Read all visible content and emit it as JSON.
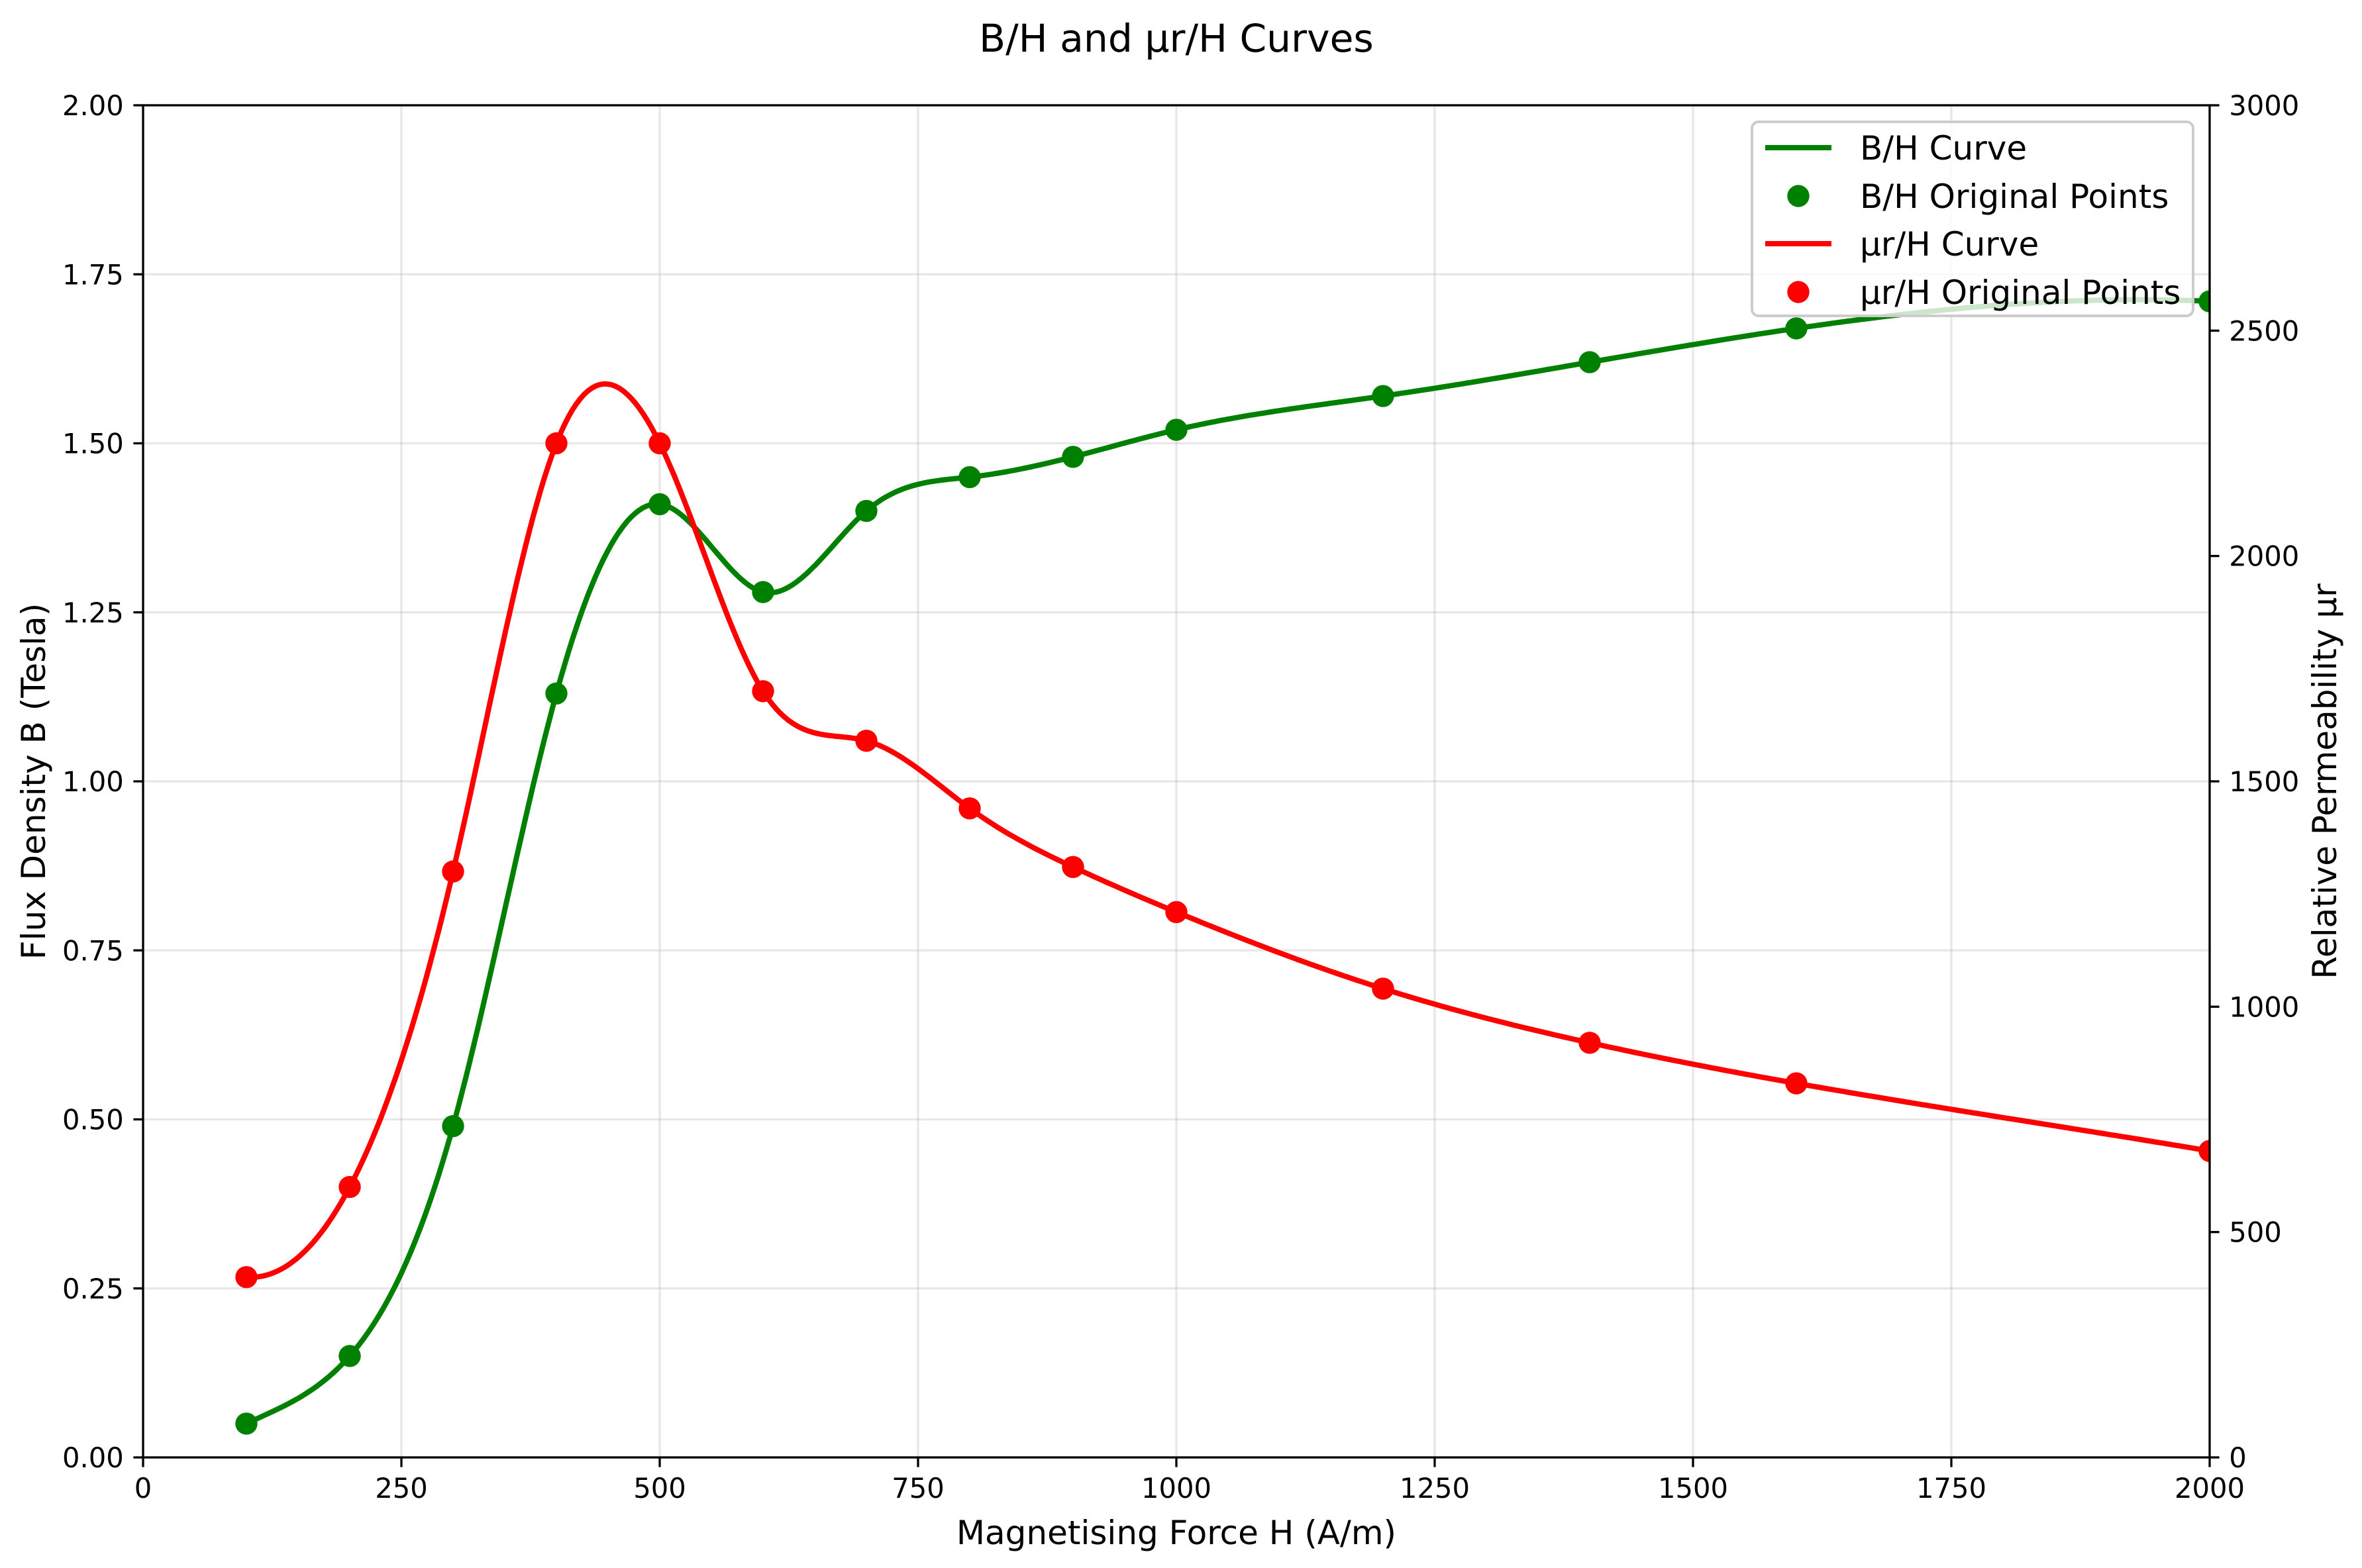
{
  "chart_data": {
    "type": "line",
    "title": "B/H and μr/H Curves",
    "xlabel": "Magnetising Force H (A/m)",
    "ylabel": "Flux Density B (Tesla)",
    "y2label": "Relative Permeability μr",
    "xlim": [
      0,
      2000
    ],
    "ylim": [
      0,
      2.0
    ],
    "y2lim": [
      0,
      3000
    ],
    "xticks": [
      "0",
      "250",
      "500",
      "750",
      "1000",
      "1250",
      "1500",
      "1750",
      "2000"
    ],
    "yticks": [
      "0.00",
      "0.25",
      "0.50",
      "0.75",
      "1.00",
      "1.25",
      "1.50",
      "1.75",
      "2.00"
    ],
    "y2ticks": [
      "0",
      "500",
      "1000",
      "1500",
      "2000",
      "2500",
      "3000"
    ],
    "grid": true,
    "legend_position": "top-right",
    "x": [
      100,
      200,
      300,
      400,
      500,
      600,
      700,
      800,
      900,
      1000,
      1200,
      1400,
      1600,
      2000
    ],
    "series": [
      {
        "name": "B/H Curve",
        "secondary_y": false,
        "line": true,
        "markers": false,
        "color": "#008000",
        "values": [
          0.05,
          0.15,
          0.49,
          1.13,
          1.41,
          1.28,
          1.4,
          1.45,
          1.48,
          1.52,
          1.57,
          1.62,
          1.67,
          1.71
        ]
      },
      {
        "name": "B/H Original Points",
        "secondary_y": false,
        "line": false,
        "markers": true,
        "color": "#008000",
        "values": [
          0.05,
          0.15,
          0.49,
          1.13,
          1.41,
          1.28,
          1.4,
          1.45,
          1.48,
          1.52,
          1.57,
          1.62,
          1.67,
          1.71
        ]
      },
      {
        "name": "μr/H Curve",
        "secondary_y": true,
        "line": true,
        "markers": false,
        "color": "#ff0000",
        "values": [
          400,
          600,
          1300,
          2250,
          2250,
          1700,
          1590,
          1440,
          1310,
          1210,
          1040,
          920,
          830,
          680
        ]
      },
      {
        "name": "μr/H Original Points",
        "secondary_y": true,
        "line": false,
        "markers": true,
        "color": "#ff0000",
        "values": [
          400,
          600,
          1300,
          2250,
          2250,
          1700,
          1590,
          1440,
          1310,
          1210,
          1040,
          920,
          830,
          680
        ]
      }
    ]
  }
}
